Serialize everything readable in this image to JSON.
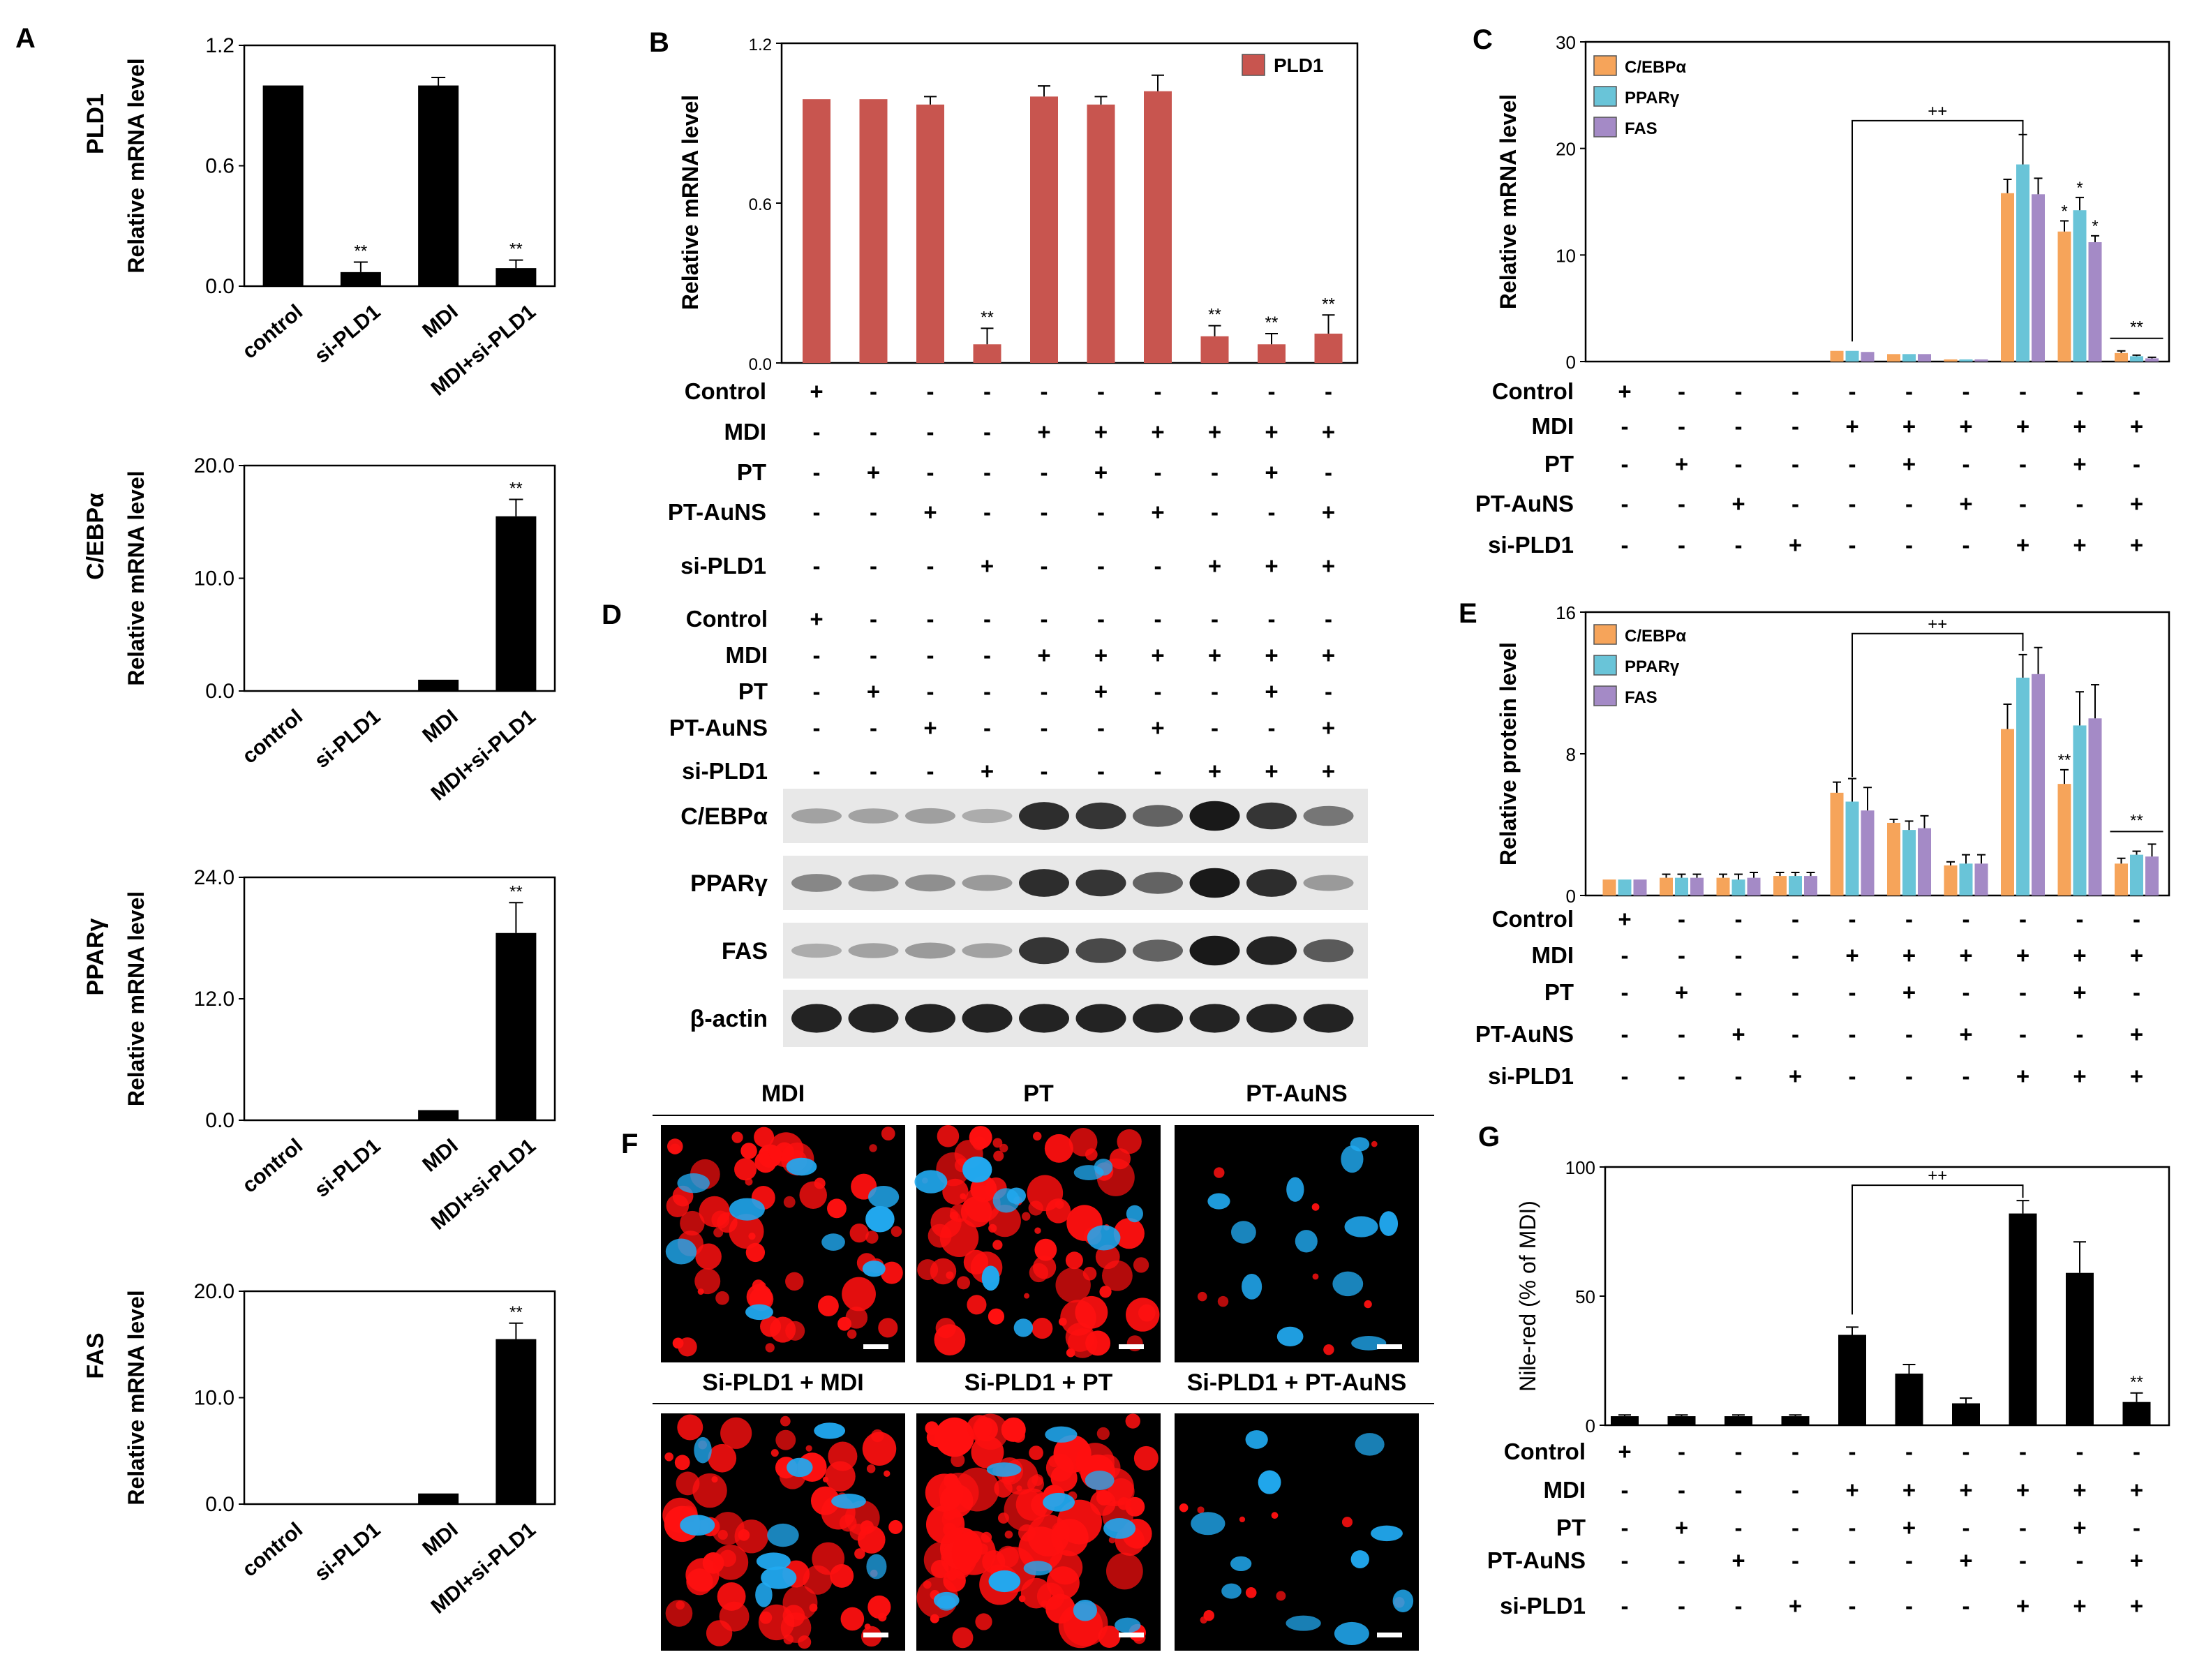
{
  "colors": {
    "bar_black": "#000000",
    "pld1_red": "#c8554f",
    "cebpa_orange": "#f6a45a",
    "pparg_blue": "#69c4d8",
    "fas_purple": "#a48ac6",
    "nucleus_blue": "#21a9f0",
    "lipid_red": "#ff1010",
    "blot_band": "#111111",
    "blot_bg": "#e8e8e8"
  },
  "panels": {
    "A": "A",
    "B": "B",
    "C": "C",
    "D": "D",
    "E": "E",
    "F": "F",
    "G": "G"
  },
  "sig": {
    "double": "**",
    "single": "*",
    "plusplus": "++"
  },
  "treat": {
    "rows": [
      "Control",
      "MDI",
      "PT",
      "PT-AuNS",
      "si-PLD1"
    ],
    "matrix": [
      [
        "+",
        "-",
        "-",
        "-",
        "-",
        "-",
        "-",
        "-",
        "-",
        "-"
      ],
      [
        "-",
        "-",
        "-",
        "-",
        "+",
        "+",
        "+",
        "+",
        "+",
        "+"
      ],
      [
        "-",
        "+",
        "-",
        "-",
        "-",
        "+",
        "-",
        "-",
        "+",
        "-"
      ],
      [
        "-",
        "-",
        "+",
        "-",
        "-",
        "-",
        "+",
        "-",
        "-",
        "+"
      ],
      [
        "-",
        "-",
        "-",
        "+",
        "-",
        "-",
        "-",
        "+",
        "+",
        "+"
      ]
    ]
  },
  "blot": {
    "labels": [
      "C/EBPα",
      "PPARγ",
      "FAS",
      "β-actin"
    ]
  },
  "images": {
    "top_labels": [
      "MDI",
      "PT",
      "PT-AuNS"
    ],
    "bottom_labels": [
      "Si-PLD1 + MDI",
      "Si-PLD1 + PT",
      "Si-PLD1 + PT-AuNS"
    ]
  },
  "chart_data": [
    {
      "panel": "A",
      "id": "A1",
      "type": "bar",
      "title": "PLD1",
      "ylabel": "Relative mRNA level",
      "categories": [
        "control",
        "si-PLD1",
        "MDI",
        "MDI+si-PLD1"
      ],
      "values": [
        1.0,
        0.07,
        1.0,
        0.09
      ],
      "errors": [
        0,
        0.05,
        0.04,
        0.04
      ],
      "annotations": [
        "",
        "**",
        "",
        "**"
      ],
      "ylim": [
        0,
        1.2
      ],
      "yticks": [
        "0.0",
        "0.6",
        "1.2"
      ],
      "ytick_values": [
        0,
        0.6,
        1.2
      ]
    },
    {
      "panel": "A",
      "id": "A2",
      "type": "bar",
      "title": "C/EBPα",
      "ylabel": "Relative mRNA level",
      "categories": [
        "control",
        "si-PLD1",
        "MDI",
        "MDI+si-PLD1"
      ],
      "values": [
        0.0,
        0.0,
        1.0,
        15.5
      ],
      "errors": [
        0,
        0,
        0,
        1.5
      ],
      "annotations": [
        "",
        "",
        "",
        "**"
      ],
      "ylim": [
        0,
        20
      ],
      "yticks": [
        "0.0",
        "10.0",
        "20.0"
      ],
      "ytick_values": [
        0,
        10,
        20
      ]
    },
    {
      "panel": "A",
      "id": "A3",
      "type": "bar",
      "title": "PPARγ",
      "ylabel": "Relative mRNA level",
      "categories": [
        "control",
        "si-PLD1",
        "MDI",
        "MDI+si-PLD1"
      ],
      "values": [
        0.0,
        0.0,
        1.0,
        18.5
      ],
      "errors": [
        0,
        0,
        0,
        3.0
      ],
      "annotations": [
        "",
        "",
        "",
        "**"
      ],
      "ylim": [
        0,
        24
      ],
      "yticks": [
        "0.0",
        "12.0",
        "24.0"
      ],
      "ytick_values": [
        0,
        12,
        24
      ]
    },
    {
      "panel": "A",
      "id": "A4",
      "type": "bar",
      "title": "FAS",
      "ylabel": "Relative mRNA level",
      "categories": [
        "control",
        "si-PLD1",
        "MDI",
        "MDI+si-PLD1"
      ],
      "values": [
        0.0,
        0.0,
        1.0,
        15.5
      ],
      "errors": [
        0,
        0,
        0,
        1.5
      ],
      "annotations": [
        "",
        "",
        "",
        "**"
      ],
      "ylim": [
        0,
        20
      ],
      "yticks": [
        "0.0",
        "10.0",
        "20.0"
      ],
      "ytick_values": [
        0,
        10,
        20
      ]
    },
    {
      "panel": "B",
      "id": "B",
      "type": "bar",
      "ylabel": "Relative mRNA level",
      "legend": [
        "PLD1"
      ],
      "values": [
        0.99,
        0.99,
        0.97,
        0.07,
        1.0,
        0.97,
        1.02,
        0.1,
        0.07,
        0.11
      ],
      "errors": [
        0.0,
        0.0,
        0.03,
        0.06,
        0.04,
        0.03,
        0.06,
        0.04,
        0.04,
        0.07
      ],
      "annotations": [
        "",
        "",
        "",
        "**",
        "",
        "",
        "",
        "**",
        "**",
        "**"
      ],
      "ylim": [
        0,
        1.2
      ],
      "yticks": [
        "0.0",
        "0.6",
        "1.2"
      ],
      "ytick_values": [
        0,
        0.6,
        1.2
      ]
    },
    {
      "panel": "C",
      "id": "C",
      "type": "bar",
      "ylabel": "Relative mRNA level",
      "ylim": [
        0,
        30
      ],
      "yticks": [
        "0",
        "10",
        "20",
        "30"
      ],
      "ytick_values": [
        0,
        10,
        20,
        30
      ],
      "series": [
        {
          "name": "C/EBPα",
          "values": [
            0,
            0,
            0,
            0,
            1.0,
            0.7,
            0.2,
            15.8,
            12.2,
            0.8
          ],
          "errors": [
            0,
            0,
            0,
            0,
            0,
            0,
            0,
            1.3,
            1.0,
            0.2
          ],
          "annotations": [
            "",
            "",
            "",
            "",
            "",
            "",
            "",
            "",
            "*",
            ""
          ]
        },
        {
          "name": "PPARγ",
          "values": [
            0,
            0,
            0,
            0,
            1.0,
            0.7,
            0.2,
            18.5,
            14.2,
            0.5
          ],
          "errors": [
            0,
            0,
            0,
            0,
            0,
            0,
            0,
            2.8,
            1.2,
            0.1
          ],
          "annotations": [
            "",
            "",
            "",
            "",
            "",
            "",
            "",
            "",
            "*",
            ""
          ]
        },
        {
          "name": "FAS",
          "values": [
            0,
            0,
            0,
            0,
            0.9,
            0.7,
            0.2,
            15.7,
            11.2,
            0.3
          ],
          "errors": [
            0,
            0,
            0,
            0,
            0,
            0,
            0,
            1.5,
            0.6,
            0.1
          ],
          "annotations": [
            "",
            "",
            "",
            "",
            "",
            "",
            "",
            "",
            "*",
            ""
          ]
        }
      ],
      "brackets": [
        {
          "from": 4,
          "to": 7,
          "label": "++"
        }
      ],
      "group_annotations": [
        {
          "group": 9,
          "label": "**"
        }
      ]
    },
    {
      "panel": "E",
      "id": "E",
      "type": "bar",
      "ylabel": "Relative protein level",
      "ylim": [
        0,
        16
      ],
      "yticks": [
        "0",
        "8",
        "16"
      ],
      "ytick_values": [
        0,
        8,
        16
      ],
      "series": [
        {
          "name": "C/EBPα",
          "values": [
            0.9,
            1.0,
            1.0,
            1.1,
            5.8,
            4.1,
            1.7,
            9.4,
            6.3,
            1.8
          ],
          "errors": [
            0,
            0.2,
            0.2,
            0.2,
            0.6,
            0.2,
            0.2,
            1.4,
            0.8,
            0.3
          ],
          "annotations": [
            "",
            "",
            "",
            "",
            "",
            "",
            "",
            "",
            "**",
            ""
          ]
        },
        {
          "name": "PPARγ",
          "values": [
            0.9,
            1.0,
            0.9,
            1.1,
            5.3,
            3.7,
            1.8,
            12.3,
            9.6,
            2.3
          ],
          "errors": [
            0,
            0.2,
            0.3,
            0.2,
            1.3,
            0.5,
            0.5,
            1.3,
            1.9,
            0.2
          ],
          "annotations": [
            "",
            "",
            "",
            "",
            "",
            "",
            "",
            "",
            "",
            ""
          ]
        },
        {
          "name": "FAS",
          "values": [
            0.9,
            1.0,
            1.0,
            1.1,
            4.8,
            3.8,
            1.8,
            12.5,
            10.0,
            2.2
          ],
          "errors": [
            0,
            0.2,
            0.3,
            0.2,
            1.3,
            0.7,
            0.5,
            1.5,
            1.9,
            0.7
          ],
          "annotations": [
            "",
            "",
            "",
            "",
            "",
            "",
            "",
            "",
            "",
            ""
          ]
        }
      ],
      "brackets": [
        {
          "from": 4,
          "to": 7,
          "label": "++"
        }
      ],
      "group_annotations": [
        {
          "group": 9,
          "label": "**"
        }
      ]
    },
    {
      "panel": "G",
      "id": "G",
      "type": "bar",
      "ylabel": "Nile-red  (% of MDI)",
      "ylim": [
        0,
        100
      ],
      "yticks": [
        "0",
        "50",
        "100"
      ],
      "ytick_values": [
        0,
        50,
        100
      ],
      "values": [
        3.5,
        3.5,
        3.5,
        3.5,
        35,
        20,
        8.5,
        82,
        59,
        9
      ],
      "errors": [
        0.5,
        0.5,
        0.5,
        0.5,
        3,
        3.5,
        2,
        5,
        12,
        3.5
      ],
      "annotations": [
        "",
        "",
        "",
        "",
        "",
        "",
        "",
        "",
        "",
        "**"
      ],
      "brackets": [
        {
          "from": 4,
          "to": 7,
          "label": "++"
        }
      ]
    }
  ]
}
